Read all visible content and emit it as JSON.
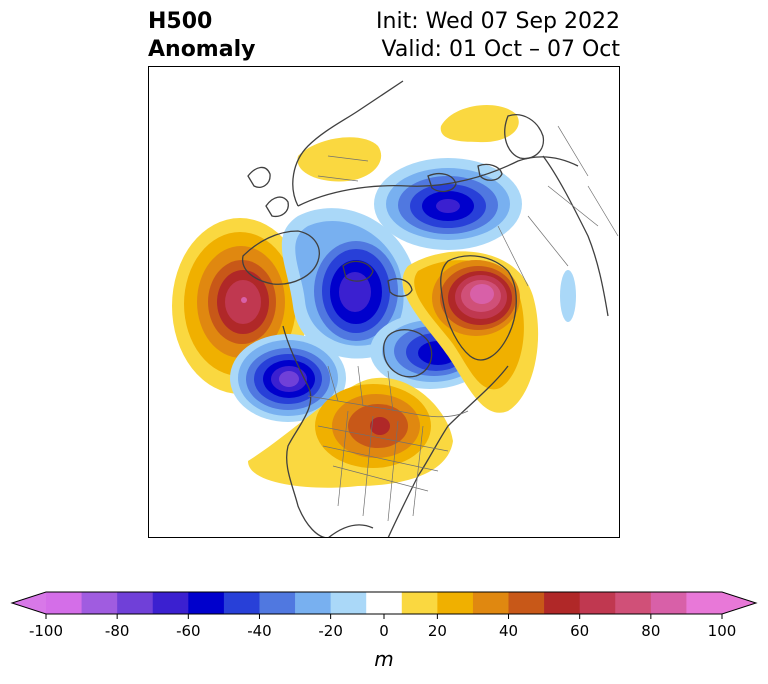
{
  "title": {
    "left_line1": "H500",
    "left_line2": "Anomaly",
    "right_line1": "Init: Wed 07 Sep 2022",
    "right_line2": "Valid: 01 Oct – 07 Oct"
  },
  "colorbar": {
    "unit": "m",
    "ticks": [
      "-100",
      "-80",
      "-60",
      "-40",
      "-20",
      "0",
      "20",
      "40",
      "60",
      "80",
      "100"
    ],
    "tick_values": [
      -100,
      -80,
      -60,
      -40,
      -20,
      0,
      20,
      40,
      60,
      80,
      100
    ],
    "levels": [
      -100,
      -90,
      -80,
      -70,
      -60,
      -50,
      -40,
      -30,
      -20,
      -10,
      10,
      20,
      30,
      40,
      50,
      60,
      70,
      80,
      90,
      100
    ],
    "colors": [
      "#d46ee8",
      "#a05ce0",
      "#7040d8",
      "#3b20d0",
      "#0000cc",
      "#2840d8",
      "#5078e0",
      "#78b0f0",
      "#aad8f8",
      "#ffffff",
      "#fad840",
      "#f0b000",
      "#e08810",
      "#c85818",
      "#b02828",
      "#c03850",
      "#d05078",
      "#d860a8",
      "#e878d8"
    ],
    "extend_low_color": "#d878e8",
    "extend_high_color": "#e878d8"
  },
  "map": {
    "projection": "north polar stereographic",
    "anomalies": [
      {
        "name": "gulf-of-alaska-high",
        "value": 70
      },
      {
        "name": "central-pacific-low",
        "value": -80
      },
      {
        "name": "arctic-low",
        "value": -60
      },
      {
        "name": "canada-low",
        "value": -60
      },
      {
        "name": "siberia-low",
        "value": -60
      },
      {
        "name": "greenland-high",
        "value": 90
      },
      {
        "name": "central-us-high",
        "value": 50
      },
      {
        "name": "scandinavia-high",
        "value": 20
      },
      {
        "name": "east-asia-high",
        "value": 20
      }
    ]
  }
}
